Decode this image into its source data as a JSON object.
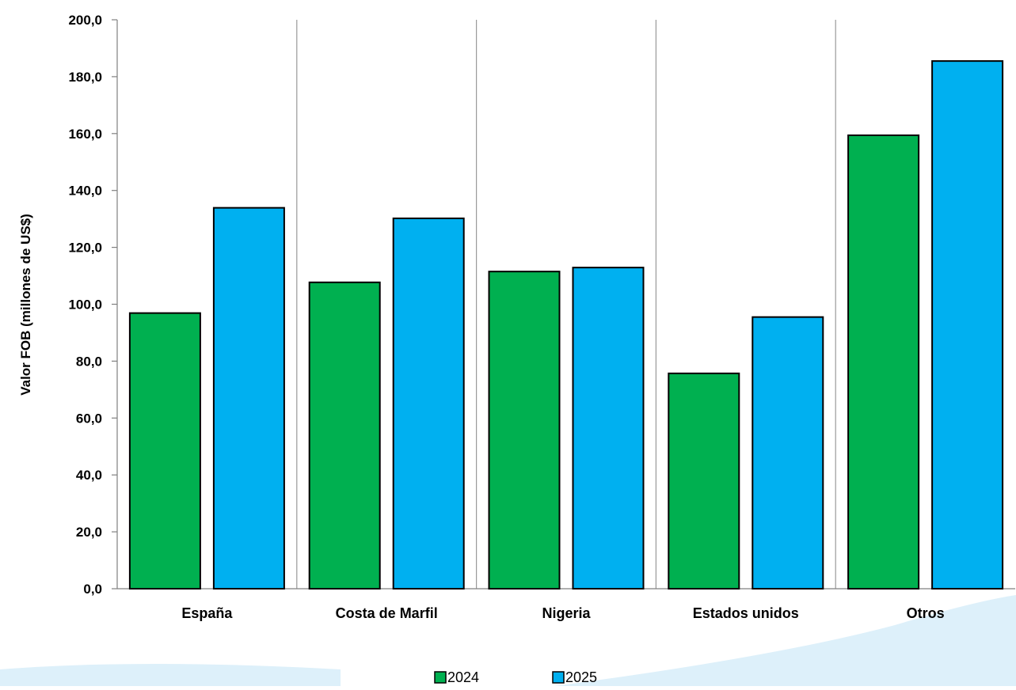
{
  "chart_data": {
    "type": "bar",
    "categories": [
      "España",
      "Costa de Marfil",
      "Nigeria",
      "Estados unidos",
      "Otros"
    ],
    "series": [
      {
        "name": "2024",
        "values": [
          96.9,
          107.7,
          111.5,
          75.7,
          159.4
        ],
        "color": "#00B050"
      },
      {
        "name": "2025",
        "values": [
          133.9,
          130.2,
          112.9,
          95.5,
          185.5
        ],
        "color": "#00B0F0"
      }
    ],
    "title": "",
    "xlabel": "",
    "ylabel": "Valor FOB (millones de US$)",
    "ylim": [
      0,
      200
    ],
    "yticks": [
      "0,0",
      "20,0",
      "40,0",
      "60,0",
      "80,0",
      "100,0",
      "120,0",
      "140,0",
      "160,0",
      "180,0",
      "200,0"
    ],
    "grid": "vertical separators between categories",
    "legend_position": "bottom-center",
    "background_swoosh_color": "#DDF0FA"
  }
}
